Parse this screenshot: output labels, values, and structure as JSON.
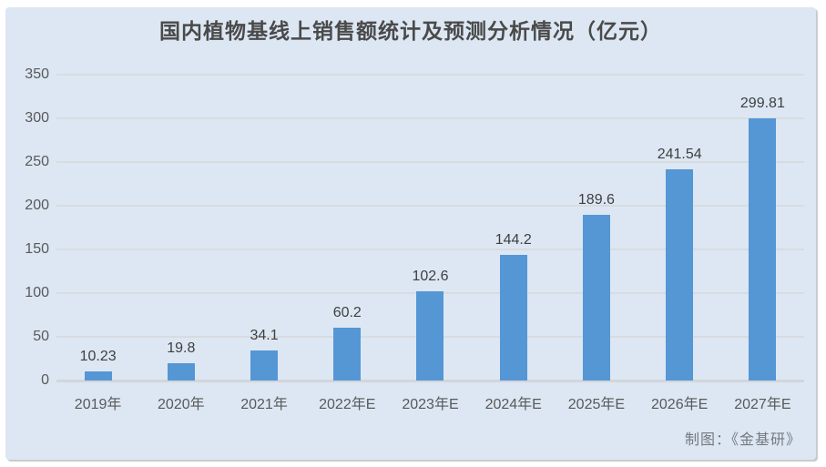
{
  "panel": {
    "background": "#dce7f3",
    "shadow_color": "#969ca4"
  },
  "chart_data": {
    "type": "bar",
    "title": "国内植物基线上销售额统计及预测分析情况（亿元）",
    "categories": [
      "2019年",
      "2020年",
      "2021年",
      "2022年E",
      "2023年E",
      "2024年E",
      "2025年E",
      "2026年E",
      "2027年E"
    ],
    "values": [
      10.23,
      19.8,
      34.1,
      60.2,
      102.6,
      144.2,
      189.6,
      241.54,
      299.81
    ],
    "value_labels": [
      "10.23",
      "19.8",
      "34.1",
      "60.2",
      "102.6",
      "144.2",
      "189.6",
      "241.54",
      "299.81"
    ],
    "xlabel": "",
    "ylabel": "",
    "ylim": [
      0,
      350
    ],
    "yticks": [
      0,
      50,
      100,
      150,
      200,
      250,
      300,
      350
    ],
    "grid": true,
    "legend": "none",
    "bar_color": "#5596d5",
    "gridline_color": "#d8dbe0",
    "baseline_color": "#d3d6da",
    "title_color": "#4a4a4a",
    "tick_label_color": "#595959",
    "value_label_color": "#3f3f3f"
  },
  "credit": {
    "label": "制图：《金基研》"
  }
}
